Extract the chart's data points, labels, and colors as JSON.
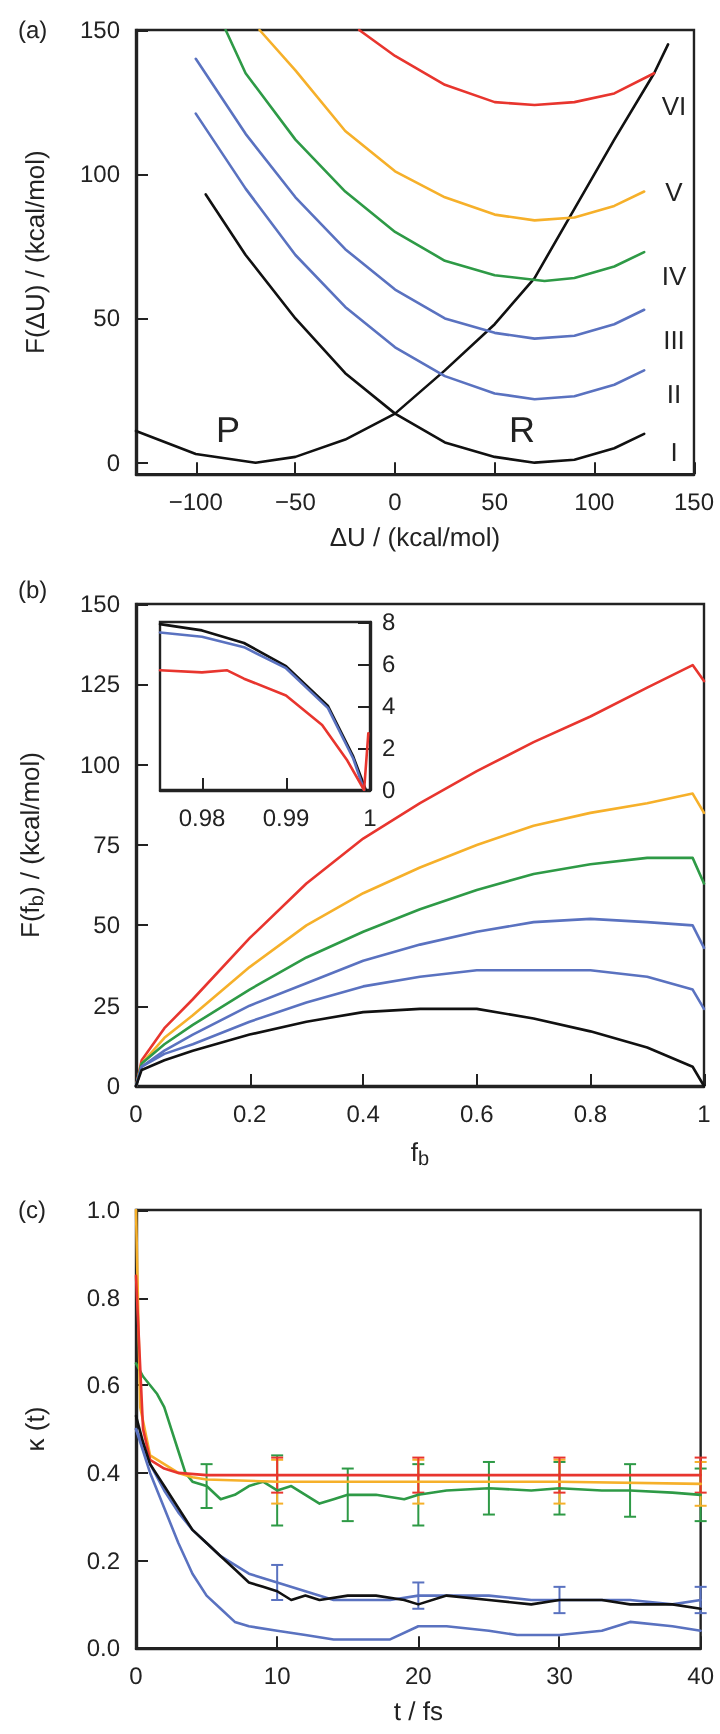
{
  "chart_data": [
    {
      "type": "line",
      "title": "(a)",
      "xlabel": "ΔU / (kcal/mol)",
      "ylabel": "F(ΔU) / (kcal/mol)",
      "marker": "none",
      "xlim": [
        -130,
        150
      ],
      "xticks": [
        -100,
        -50,
        0,
        50,
        100,
        150
      ],
      "ylim": [
        -4,
        150
      ],
      "yticks": [
        0,
        50,
        100,
        150
      ],
      "series": [
        {
          "color": "#111111",
          "x": [
            -130,
            -100,
            -70,
            -50,
            -25,
            0,
            25,
            50,
            70,
            90,
            110,
            130,
            137
          ],
          "values": [
            11,
            3,
            0,
            2,
            8,
            17,
            32,
            48,
            64,
            88,
            112,
            135,
            145
          ]
        },
        {
          "color": "#111111",
          "x": [
            -95,
            -75,
            -50,
            -25,
            0,
            25,
            50,
            70,
            90,
            110,
            125
          ],
          "values": [
            93,
            72,
            50,
            31,
            17,
            7,
            2,
            0,
            1,
            5,
            10
          ]
        },
        {
          "color": "#5a72c0",
          "x": [
            -100,
            -75,
            -50,
            -25,
            0,
            25,
            50,
            70,
            90,
            110,
            125
          ],
          "values": [
            121,
            95,
            72,
            54,
            40,
            30,
            24,
            22,
            23,
            27,
            32
          ]
        },
        {
          "color": "#5a72c0",
          "x": [
            -100,
            -75,
            -50,
            -25,
            0,
            25,
            50,
            70,
            90,
            110,
            125
          ],
          "values": [
            140,
            114,
            92,
            74,
            60,
            50,
            45,
            43,
            44,
            48,
            53
          ]
        },
        {
          "color": "#2e9a46",
          "x": [
            -85,
            -75,
            -50,
            -25,
            0,
            25,
            50,
            75,
            90,
            110,
            125
          ],
          "values": [
            150,
            135,
            112,
            94,
            80,
            70,
            65,
            63,
            64,
            68,
            73
          ]
        },
        {
          "color": "#f6b02a",
          "x": [
            -68,
            -50,
            -25,
            0,
            25,
            50,
            70,
            90,
            110,
            125
          ],
          "values": [
            150,
            136,
            115,
            101,
            92,
            86,
            84,
            85,
            89,
            94
          ]
        },
        {
          "color": "#e8352e",
          "x": [
            -18,
            0,
            25,
            50,
            70,
            90,
            110,
            130
          ],
          "values": [
            150,
            141,
            131,
            125,
            124,
            125,
            128,
            135
          ]
        }
      ],
      "annotations": [
        "P",
        "R",
        "I",
        "II",
        "III",
        "IV",
        "V",
        "VI"
      ]
    },
    {
      "type": "line",
      "title": "(b)",
      "xlabel": "f$_{b}$",
      "ylabel": "F(f$_{b}$) / (kcal/mol)",
      "marker": "none",
      "xlim": [
        0,
        1
      ],
      "xticks": [
        0,
        0.2,
        0.4,
        0.6,
        0.8,
        1
      ],
      "ylim": [
        0,
        150
      ],
      "yticks": [
        0,
        25,
        50,
        75,
        100,
        125,
        150
      ],
      "x": [
        0,
        0.01,
        0.05,
        0.1,
        0.2,
        0.3,
        0.4,
        0.5,
        0.6,
        0.7,
        0.8,
        0.9,
        0.98,
        1
      ],
      "series": [
        {
          "color": "#e8352e",
          "values": [
            0,
            8,
            18,
            27,
            46,
            63,
            77,
            88,
            98,
            107,
            115,
            124,
            131,
            126
          ]
        },
        {
          "color": "#f6b02a",
          "values": [
            0,
            7,
            15,
            22,
            37,
            50,
            60,
            68,
            75,
            81,
            85,
            88,
            91,
            85
          ]
        },
        {
          "color": "#2e9a46",
          "values": [
            0,
            7,
            13,
            19,
            30,
            40,
            48,
            55,
            61,
            66,
            69,
            71,
            71,
            63
          ]
        },
        {
          "color": "#5a72c0",
          "values": [
            0,
            6,
            11,
            16,
            25,
            32,
            39,
            44,
            48,
            51,
            52,
            51,
            50,
            43
          ]
        },
        {
          "color": "#5a72c0",
          "values": [
            0,
            6,
            10,
            13,
            20,
            26,
            31,
            34,
            36,
            36,
            36,
            34,
            30,
            24
          ]
        },
        {
          "color": "#111111",
          "values": [
            0,
            5,
            8,
            11,
            16,
            20,
            23,
            24,
            24,
            21,
            17,
            12,
            6,
            0
          ]
        }
      ]
    },
    {
      "type": "line",
      "marker": "none",
      "xlim": [
        0.975,
        1
      ],
      "xticks": [
        0.98,
        0.99,
        1
      ],
      "ylim": [
        0,
        8
      ],
      "yticks": [
        0,
        2,
        4,
        6,
        8
      ],
      "series": [
        {
          "color": "#111111",
          "x": [
            0.975,
            0.98,
            0.985,
            0.99,
            0.995,
            0.998,
            0.9995
          ],
          "values": [
            7.9,
            7.6,
            7.0,
            5.9,
            4.0,
            1.6,
            0
          ]
        },
        {
          "color": "#5a72c0",
          "x": [
            0.975,
            0.98,
            0.985,
            0.99,
            0.995,
            0.998,
            0.9993
          ],
          "values": [
            7.5,
            7.3,
            6.8,
            5.8,
            3.9,
            1.5,
            0
          ]
        },
        {
          "color": "#e8352e",
          "x": [
            0.975,
            0.98,
            0.983,
            0.985,
            0.99,
            0.9943,
            0.9973,
            0.9993,
            0.9998
          ],
          "values": [
            5.7,
            5.6,
            5.7,
            5.3,
            4.5,
            3.1,
            1.4,
            0,
            2.7
          ]
        }
      ]
    },
    {
      "type": "line",
      "title": "(c)",
      "xlabel": "t / fs",
      "ylabel": "κ (t)",
      "marker": "none",
      "xlim": [
        0,
        40
      ],
      "xticks": [
        0,
        10,
        20,
        30,
        40
      ],
      "ylim": [
        0,
        1
      ],
      "yticks": [
        {
          "value": 0,
          "label": "0.0"
        },
        {
          "value": 0.2,
          "label": "0.2"
        },
        {
          "value": 0.4,
          "label": "0.4"
        },
        {
          "value": 0.6,
          "label": "0.6"
        },
        {
          "value": 0.8,
          "label": "0.8"
        },
        {
          "value": 1,
          "label": "1.0"
        }
      ],
      "series": [
        {
          "color": "#2e9a46",
          "x": [
            0,
            0.5,
            1,
            1.5,
            2,
            2.5,
            3,
            3.5,
            4,
            5,
            6,
            7,
            8,
            9,
            10,
            11,
            12,
            13,
            14,
            15,
            17,
            19,
            20,
            22,
            25,
            28,
            30,
            33,
            35,
            38,
            40
          ],
          "values": [
            0.65,
            0.62,
            0.6,
            0.58,
            0.55,
            0.5,
            0.45,
            0.4,
            0.38,
            0.37,
            0.34,
            0.35,
            0.37,
            0.38,
            0.36,
            0.37,
            0.35,
            0.33,
            0.34,
            0.35,
            0.35,
            0.34,
            0.35,
            0.36,
            0.365,
            0.36,
            0.365,
            0.36,
            0.36,
            0.355,
            0.35
          ],
          "errors": [
            null,
            null,
            null,
            null,
            null,
            null,
            null,
            null,
            null,
            0.05,
            null,
            null,
            null,
            null,
            0.08,
            null,
            null,
            null,
            null,
            0.06,
            null,
            null,
            0.07,
            null,
            0.06,
            null,
            0.06,
            null,
            0.06,
            null,
            0.06
          ]
        },
        {
          "color": "#f6b02a",
          "x": [
            0,
            0.3,
            1,
            2,
            3,
            4,
            5,
            10,
            20,
            30,
            40
          ],
          "values": [
            1.0,
            0.55,
            0.44,
            0.42,
            0.4,
            0.39,
            0.385,
            0.38,
            0.38,
            0.38,
            0.375
          ],
          "errors": [
            null,
            null,
            null,
            null,
            null,
            null,
            null,
            0.05,
            0.05,
            0.05,
            0.05
          ]
        },
        {
          "color": "#e8352e",
          "x": [
            0,
            0.5,
            1,
            2,
            3,
            5,
            10,
            20,
            30,
            40
          ],
          "values": [
            0.85,
            0.5,
            0.43,
            0.41,
            0.4,
            0.395,
            0.395,
            0.395,
            0.395,
            0.395
          ],
          "errors": [
            null,
            null,
            null,
            null,
            null,
            null,
            0.04,
            0.04,
            0.04,
            0.04
          ]
        },
        {
          "color": "#5a72c0",
          "x": [
            0,
            1,
            2,
            3,
            4,
            5,
            6,
            7,
            8,
            10,
            12,
            14,
            16,
            18,
            20,
            22,
            25,
            28,
            30,
            33,
            35,
            38,
            40
          ],
          "values": [
            0.5,
            0.42,
            0.36,
            0.31,
            0.27,
            0.24,
            0.21,
            0.19,
            0.17,
            0.15,
            0.13,
            0.11,
            0.11,
            0.11,
            0.12,
            0.12,
            0.12,
            0.11,
            0.11,
            0.11,
            0.11,
            0.1,
            0.11
          ],
          "errors": [
            null,
            null,
            null,
            null,
            null,
            null,
            null,
            null,
            null,
            0.04,
            null,
            null,
            null,
            null,
            0.03,
            null,
            null,
            null,
            0.03,
            null,
            null,
            null,
            0.03
          ]
        },
        {
          "color": "#111111",
          "x": [
            0,
            0.5,
            1,
            2,
            3,
            4,
            5,
            6,
            7,
            8,
            9,
            10,
            11,
            12,
            13,
            15,
            17,
            19,
            20,
            22,
            25,
            28,
            30,
            33,
            35,
            38,
            40
          ],
          "values": [
            0.53,
            0.47,
            0.42,
            0.37,
            0.32,
            0.27,
            0.24,
            0.21,
            0.18,
            0.15,
            0.14,
            0.13,
            0.11,
            0.12,
            0.11,
            0.12,
            0.12,
            0.11,
            0.1,
            0.12,
            0.11,
            0.1,
            0.11,
            0.11,
            0.1,
            0.1,
            0.09
          ]
        },
        {
          "color": "#5a72c0",
          "x": [
            0,
            1,
            2,
            3,
            4,
            5,
            6,
            7,
            8,
            10,
            12,
            14,
            16,
            18,
            20,
            22,
            25,
            27,
            30,
            33,
            35,
            38,
            40
          ],
          "values": [
            0.5,
            0.4,
            0.32,
            0.24,
            0.17,
            0.12,
            0.09,
            0.06,
            0.05,
            0.04,
            0.03,
            0.02,
            0.02,
            0.02,
            0.05,
            0.05,
            0.04,
            0.03,
            0.03,
            0.04,
            0.06,
            0.05,
            0.04
          ]
        }
      ]
    }
  ]
}
